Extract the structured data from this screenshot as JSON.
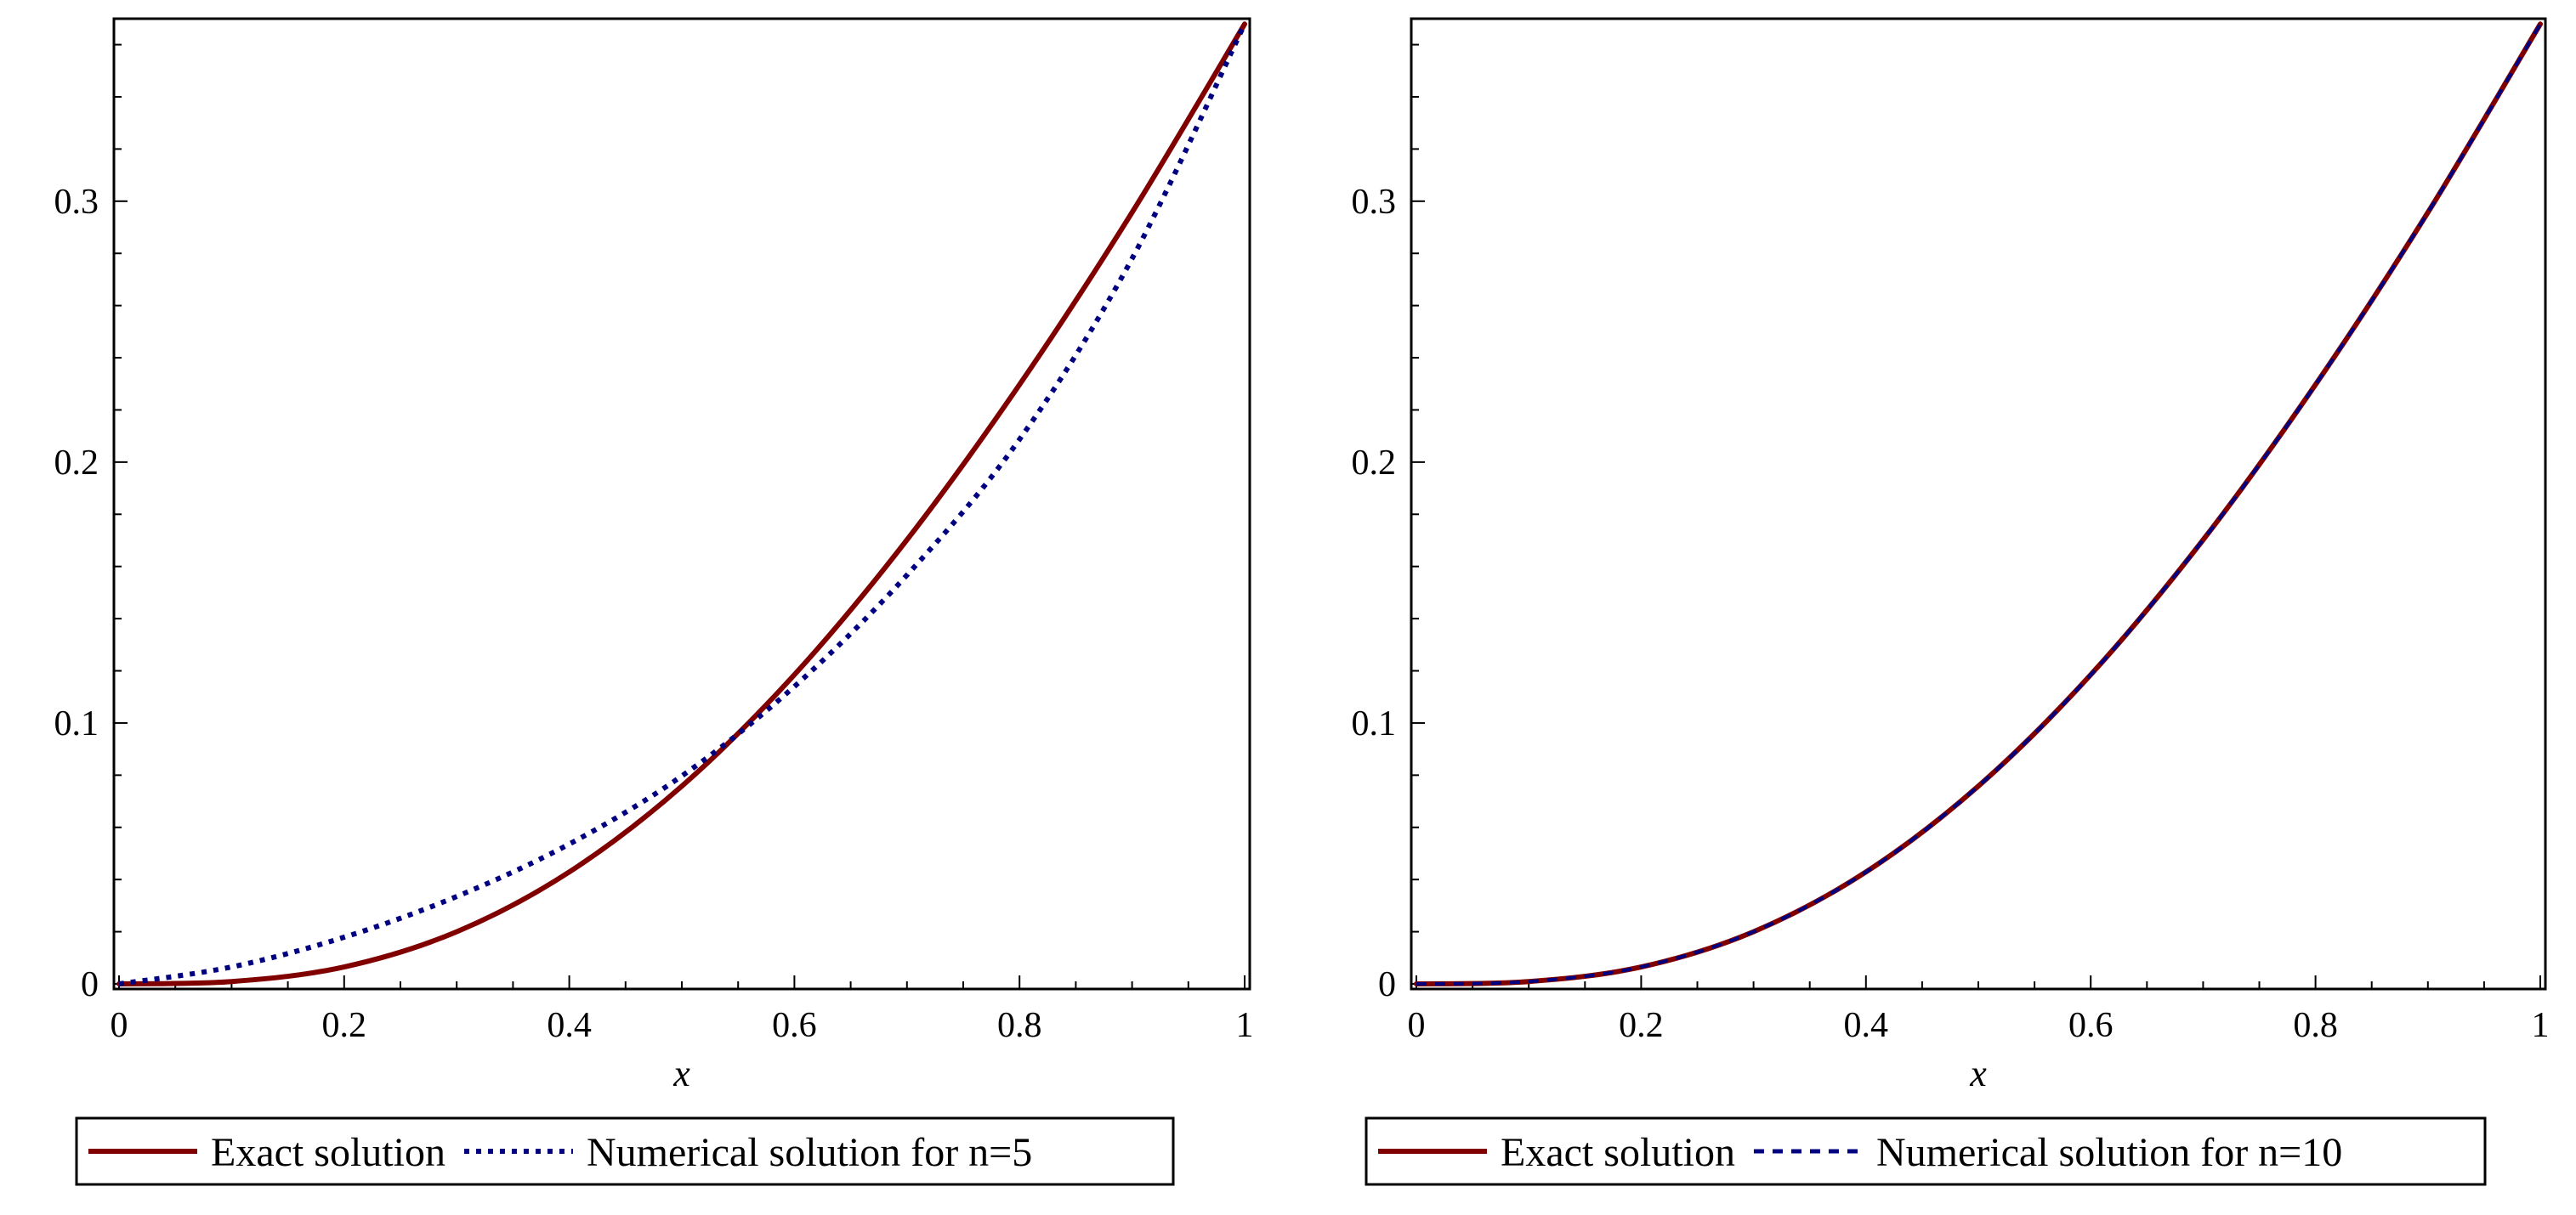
{
  "figure": {
    "colors": {
      "exact": "#800000",
      "numerical": "#000080",
      "frame": "#000000"
    }
  },
  "chart_data": [
    {
      "type": "line",
      "title": "",
      "xlabel": "x",
      "ylabel": "",
      "xlim": [
        0,
        1
      ],
      "ylim": [
        0,
        0.368
      ],
      "xticks": [
        0,
        0.2,
        0.4,
        0.6,
        0.8,
        1
      ],
      "xtick_labels": [
        "0",
        "0.2",
        "0.4",
        "0.6",
        "0.8",
        "1"
      ],
      "yticks": [
        0,
        0.1,
        0.2,
        0.3
      ],
      "ytick_labels": [
        "0",
        "0.1",
        "0.2",
        "0.3"
      ],
      "grid": false,
      "legend_position": "bottom",
      "x": [
        0,
        0.1,
        0.2,
        0.3,
        0.4,
        0.5,
        0.6,
        0.7,
        0.8,
        0.9,
        1.0
      ],
      "series": [
        {
          "name": "Exact solution",
          "style": "solid",
          "color": "#800000",
          "values": [
            0,
            0.0009,
            0.0065,
            0.02,
            0.0429,
            0.0758,
            0.1185,
            0.1702,
            0.2297,
            0.2957,
            0.3679
          ]
        },
        {
          "name": "Numerical solution for n=5",
          "style": "dotted",
          "color": "#000080",
          "values": [
            0,
            0.0065,
            0.0179,
            0.0335,
            0.0536,
            0.0797,
            0.114,
            0.1567,
            0.2087,
            0.278,
            0.3679
          ]
        }
      ]
    },
    {
      "type": "line",
      "title": "",
      "xlabel": "x",
      "ylabel": "",
      "xlim": [
        0,
        1
      ],
      "ylim": [
        0,
        0.368
      ],
      "xticks": [
        0,
        0.2,
        0.4,
        0.6,
        0.8,
        1
      ],
      "xtick_labels": [
        "0",
        "0.2",
        "0.4",
        "0.6",
        "0.8",
        "1"
      ],
      "yticks": [
        0,
        0.1,
        0.2,
        0.3
      ],
      "ytick_labels": [
        "0",
        "0.1",
        "0.2",
        "0.3"
      ],
      "grid": false,
      "legend_position": "bottom",
      "x": [
        0,
        0.1,
        0.2,
        0.3,
        0.4,
        0.5,
        0.6,
        0.7,
        0.8,
        0.9,
        1.0
      ],
      "series": [
        {
          "name": "Exact solution",
          "style": "solid",
          "color": "#800000",
          "values": [
            0,
            0.0009,
            0.0065,
            0.02,
            0.0429,
            0.0758,
            0.1185,
            0.1702,
            0.2297,
            0.2957,
            0.3679
          ]
        },
        {
          "name": "Numerical solution for n=10",
          "style": "dashed",
          "color": "#000080",
          "values": [
            0,
            0.0009,
            0.0065,
            0.02,
            0.0429,
            0.0758,
            0.1185,
            0.1702,
            0.2297,
            0.2957,
            0.3679
          ]
        }
      ]
    }
  ]
}
